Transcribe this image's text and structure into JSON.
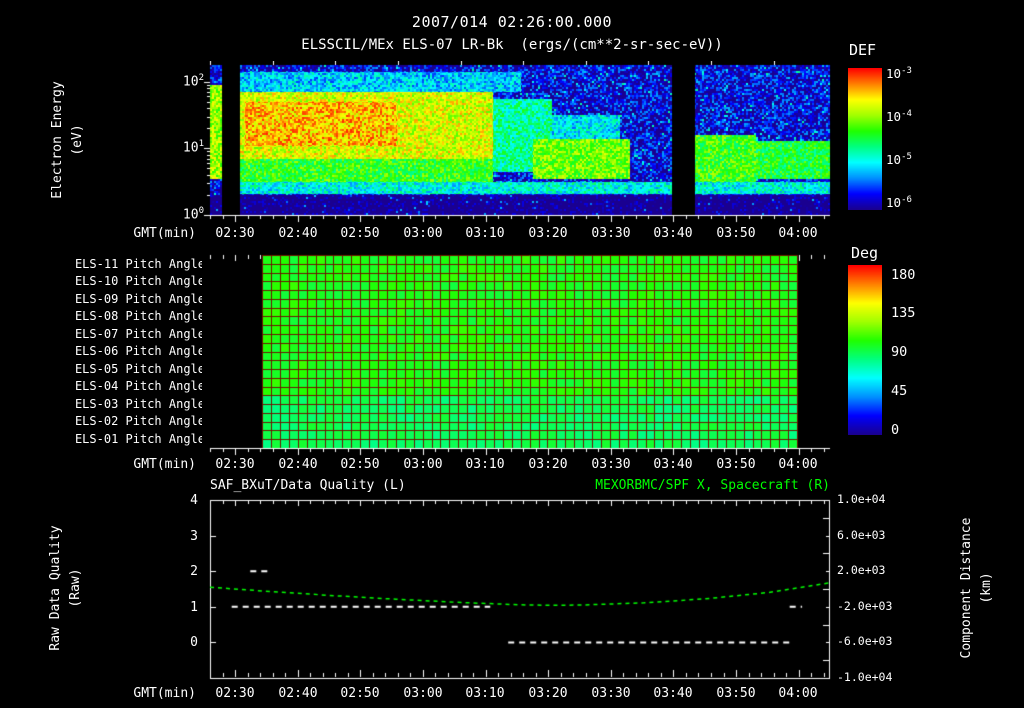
{
  "colors": {
    "background": "#000000",
    "text": "#ffffff",
    "accent_green": "#00ff00",
    "grid_red": "#6e1400",
    "colormap": [
      "#1a0090",
      "#0000ff",
      "#0090ff",
      "#00ffff",
      "#00ff80",
      "#20ff00",
      "#a0ff00",
      "#ffff00",
      "#ff8000",
      "#ff0000"
    ]
  },
  "header": {
    "timestamp": "2007/014 02:26:00.000",
    "title": "ELSSCIL/MEx ELS-07 LR-Bk",
    "units": "(ergs/(cm**2-sr-sec-eV))"
  },
  "time_axis": {
    "label": "GMT(min)",
    "start_gmt": "02:26",
    "end_gmt": "04:05",
    "ticks": [
      "02:30",
      "02:40",
      "02:50",
      "03:00",
      "03:10",
      "03:20",
      "03:30",
      "03:40",
      "03:50",
      "04:00"
    ]
  },
  "spectrogram": {
    "ylabel_line1": "Electron Energy",
    "ylabel_line2": "(eV)",
    "yticks": [
      {
        "base": "10",
        "exp": "2"
      },
      {
        "base": "10",
        "exp": "1"
      },
      {
        "base": "10",
        "exp": "0"
      }
    ],
    "colorbar": {
      "label": "DEF",
      "ticks": [
        {
          "base": "10",
          "exp": "-3"
        },
        {
          "base": "10",
          "exp": "-4"
        },
        {
          "base": "10",
          "exp": "-5"
        },
        {
          "base": "10",
          "exp": "-6"
        }
      ]
    }
  },
  "pitch": {
    "rows": [
      "ELS-11 Pitch Angle",
      "ELS-10 Pitch Angle",
      "ELS-09 Pitch Angle",
      "ELS-08 Pitch Angle",
      "ELS-07 Pitch Angle",
      "ELS-06 Pitch Angle",
      "ELS-05 Pitch Angle",
      "ELS-04 Pitch Angle",
      "ELS-03 Pitch Angle",
      "ELS-02 Pitch Angle",
      "ELS-01 Pitch Angle"
    ],
    "colorbar": {
      "label": "Deg",
      "ticks": [
        "180",
        "135",
        "90",
        "45",
        "0"
      ]
    }
  },
  "bottom": {
    "left_title": "SAF_BXuT/Data Quality (L)",
    "right_title": "MEXORBMC/SPF X, Spacecraft (R)",
    "left_ylabel_line1": "Raw Data Quality",
    "left_ylabel_line2": "(Raw)",
    "left_yticks": [
      "4",
      "3",
      "2",
      "1",
      "0"
    ],
    "right_ylabel_line1": "Component Distance",
    "right_ylabel_line2": "(km)",
    "right_yticks": [
      "1.0e+04",
      "6.0e+03",
      "2.0e+03",
      "-2.0e+03",
      "-6.0e+03",
      "-1.0e+04"
    ]
  },
  "chart_data": [
    {
      "type": "heatmap",
      "title": "ELSSCIL/MEx ELS-07 LR-Bk",
      "units": "ergs/(cm**2-sr-sec-eV)",
      "xlabel": "GMT(min)",
      "ylabel": "Electron Energy (eV)",
      "x_range_gmt": [
        "02:26",
        "04:05"
      ],
      "y_scale": "log",
      "y_log_range": [
        0,
        2.25
      ],
      "value_scale": "log",
      "value_log_range": [
        -6,
        -3
      ],
      "background_log_value": -5.8,
      "no_data_time_frac": [
        [
          0.019,
          0.048
        ],
        [
          0.745,
          0.782
        ]
      ],
      "bands": [
        {
          "t": [
            0.0,
            0.019
          ],
          "e": [
            0.55,
            1.95
          ],
          "v": -4.0
        },
        {
          "t": [
            0.048,
            0.455
          ],
          "e": [
            0.85,
            1.85
          ],
          "v": -3.8
        },
        {
          "t": [
            0.055,
            0.3
          ],
          "e": [
            1.05,
            1.7
          ],
          "v": -3.5
        },
        {
          "t": [
            0.048,
            0.455
          ],
          "e": [
            0.5,
            0.95
          ],
          "v": -4.35
        },
        {
          "t": [
            0.048,
            0.5
          ],
          "e": [
            1.85,
            2.15
          ],
          "v": -5.15
        },
        {
          "t": [
            0.455,
            0.55
          ],
          "e": [
            0.65,
            1.75
          ],
          "v": -4.75
        },
        {
          "t": [
            0.52,
            0.677
          ],
          "e": [
            0.55,
            1.15
          ],
          "v": -4.15
        },
        {
          "t": [
            0.53,
            0.66
          ],
          "e": [
            1.15,
            1.5
          ],
          "v": -5.05
        },
        {
          "t": [
            0.782,
            0.88
          ],
          "e": [
            0.5,
            1.2
          ],
          "v": -4.3
        },
        {
          "t": [
            0.88,
            1.0
          ],
          "e": [
            0.55,
            1.12
          ],
          "v": -4.45
        },
        {
          "t": [
            0.048,
            1.0
          ],
          "e": [
            0.32,
            0.5
          ],
          "v": -4.95
        }
      ]
    },
    {
      "type": "heatmap",
      "title": "ELS Pitch Angle (ELS-01 .. ELS-11)",
      "rows": 11,
      "deg_range": [
        0,
        180
      ],
      "data_time_frac": [
        0.084,
        0.947
      ],
      "fill_deg": 97,
      "fill_deg_bottom_rows": 86,
      "fill_deg_jitter": 14
    },
    {
      "type": "line",
      "xlabel": "GMT(min)",
      "x_range_gmt": [
        "02:26",
        "04:05"
      ],
      "left_series": {
        "name": "SAF_BXuT/Data Quality (L)",
        "color": "#ffffff",
        "style": "dashed",
        "y_range": [
          -1,
          4
        ],
        "segments": [
          {
            "t": [
              0.035,
              0.452
            ],
            "value": 1
          },
          {
            "t": [
              0.065,
              0.1
            ],
            "value": 2
          },
          {
            "t": [
              0.481,
              0.935
            ],
            "value": 0
          },
          {
            "t": [
              0.935,
              0.955
            ],
            "value": 1
          }
        ]
      },
      "right_series": {
        "name": "MEXORBMC/SPF X, Spacecraft (R)",
        "color": "#00ff00",
        "style": "dashed",
        "y_range": [
          -10000,
          10000
        ],
        "points_t": [
          0,
          0.1,
          0.2,
          0.3,
          0.4,
          0.5,
          0.55,
          0.6,
          0.7,
          0.8,
          0.9,
          1.0
        ],
        "points_km": [
          200,
          -300,
          -750,
          -1150,
          -1500,
          -1780,
          -1830,
          -1800,
          -1550,
          -1100,
          -400,
          700
        ]
      }
    }
  ]
}
